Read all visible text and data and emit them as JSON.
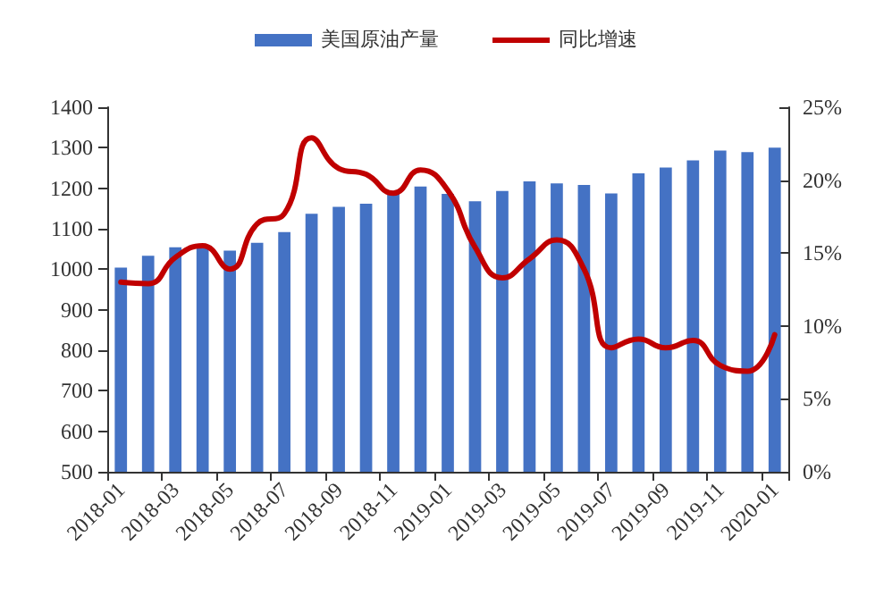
{
  "chart_data": {
    "type": "bar",
    "categories": [
      "2018-01",
      null,
      "2018-03",
      null,
      "2018-05",
      null,
      "2018-07",
      null,
      "2018-09",
      null,
      "2018-11",
      null,
      "2019-01",
      null,
      "2019-03",
      null,
      "2019-05",
      null,
      "2019-07",
      null,
      "2019-09",
      null,
      "2019-11",
      null,
      "2020-01"
    ],
    "series": [
      {
        "name": "美国原油产量",
        "color": "#4472c4",
        "values": [
          1004,
          1033,
          1054,
          1060,
          1046,
          1065,
          1092,
          1137,
          1154,
          1162,
          1193,
          1204,
          1186,
          1168,
          1193,
          1217,
          1212,
          1208,
          1187,
          1237,
          1251,
          1269,
          1293,
          1289,
          1300
        ]
      },
      {
        "name": "同比增速",
        "type": "line",
        "axis": "y2",
        "color": "#c00000",
        "values": [
          13.0,
          12.9,
          14.7,
          15.5,
          13.9,
          17.0,
          17.7,
          22.9,
          20.8,
          20.4,
          19.1,
          20.7,
          19.3,
          15.4,
          13.3,
          14.6,
          15.9,
          13.9,
          8.5,
          9.1,
          8.5,
          9.0,
          7.3,
          6.9,
          9.4
        ]
      }
    ],
    "ylim": [
      500,
      1400
    ],
    "yticks": [
      500,
      600,
      700,
      800,
      900,
      1000,
      1100,
      1200,
      1300,
      1400
    ],
    "y2lim": [
      0,
      25
    ],
    "y2ticks": [
      {
        "value": 0,
        "label": "0%"
      },
      {
        "value": 5,
        "label": "5%"
      },
      {
        "value": 10,
        "label": "10%"
      },
      {
        "value": 15,
        "label": "15%"
      },
      {
        "value": 20,
        "label": "20%"
      },
      {
        "value": 25,
        "label": "25%"
      }
    ],
    "grid": false,
    "legend": "top",
    "marker": "none",
    "line_style": "solid"
  }
}
